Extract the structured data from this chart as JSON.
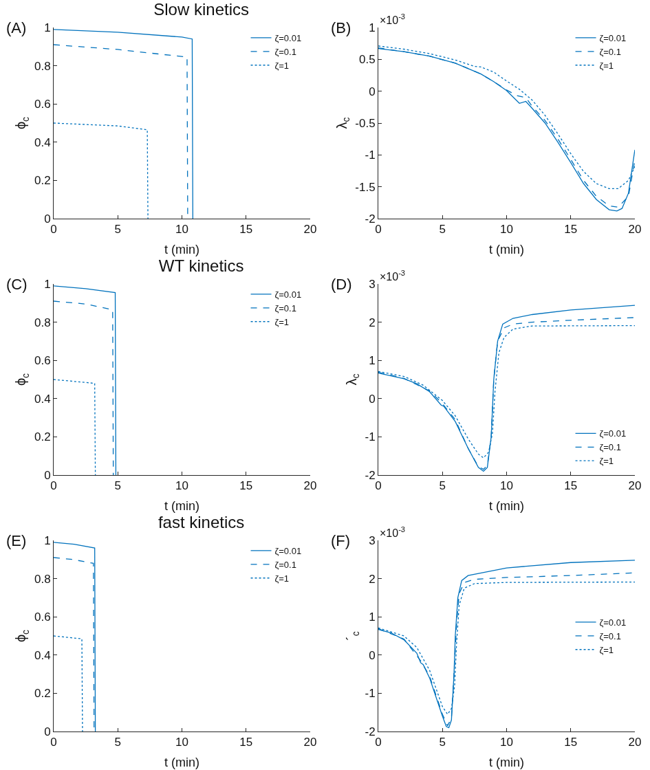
{
  "chart_data": [
    {
      "type": "line",
      "title": "Slow kinetics",
      "xlabel": "t (min)",
      "ylabel": "ϕ$_{c}$",
      "annotations": [
        "(A)"
      ],
      "xlim": [
        0,
        20
      ],
      "xticks": [
        0,
        5,
        10,
        15,
        20
      ],
      "ylim": [
        0,
        1
      ],
      "yticks": [
        0,
        0.2,
        0.4,
        0.6,
        0.8,
        1
      ],
      "grid": false,
      "legend": "top right",
      "series": [
        {
          "name": "ζ=0.01",
          "color": "#0072bd",
          "line_style": "solid",
          "x": [
            0,
            5,
            10,
            10.8,
            10.85
          ],
          "values": [
            0.99,
            0.975,
            0.95,
            0.94,
            0
          ]
        },
        {
          "name": "ζ=0.1",
          "color": "#0072bd",
          "line_style": "dashed",
          "x": [
            0,
            5,
            10.4,
            10.45
          ],
          "values": [
            0.91,
            0.885,
            0.845,
            0
          ]
        },
        {
          "name": "ζ=1",
          "color": "#0072bd",
          "line_style": "dotted",
          "x": [
            0,
            5,
            7.3,
            7.35
          ],
          "values": [
            0.5,
            0.485,
            0.465,
            0
          ]
        }
      ]
    },
    {
      "type": "line",
      "xlabel": "t (min)",
      "ylabel": "λ$_{c}$",
      "annotations": [
        "(B)",
        "×10$^{-3}$"
      ],
      "xlim": [
        0,
        20
      ],
      "xticks": [
        0,
        5,
        10,
        15,
        20
      ],
      "ylim": [
        -2,
        1
      ],
      "yticks": [
        -2,
        -1.5,
        -1,
        -0.5,
        0,
        0.5,
        1
      ],
      "grid": false,
      "legend": "top right",
      "series": [
        {
          "name": "ζ=0.01",
          "color": "#0072bd",
          "line_style": "solid",
          "x": [
            0,
            2,
            4,
            6,
            8,
            9,
            10,
            11,
            11.5,
            12,
            13,
            14,
            15,
            16,
            17,
            18,
            18.6,
            19,
            19.5,
            20
          ],
          "values": [
            0.67,
            0.62,
            0.55,
            0.44,
            0.27,
            0.15,
            0.01,
            -0.19,
            -0.16,
            -0.27,
            -0.5,
            -0.8,
            -1.12,
            -1.45,
            -1.7,
            -1.86,
            -1.88,
            -1.84,
            -1.6,
            -0.92
          ]
        },
        {
          "name": "ζ=0.1",
          "color": "#0072bd",
          "line_style": "dashed",
          "x": [
            0,
            2,
            4,
            6,
            8,
            9,
            10,
            10.8,
            11.5,
            12,
            13,
            14,
            15,
            16,
            17,
            18,
            18.7,
            19.5,
            20
          ],
          "values": [
            0.68,
            0.62,
            0.55,
            0.44,
            0.27,
            0.15,
            0.02,
            -0.07,
            -0.1,
            -0.24,
            -0.46,
            -0.75,
            -1.07,
            -1.4,
            -1.65,
            -1.8,
            -1.82,
            -1.65,
            -1.08
          ]
        },
        {
          "name": "ζ=1",
          "color": "#0072bd",
          "line_style": "dotted",
          "x": [
            0,
            2,
            4,
            6,
            7.5,
            8,
            9,
            10,
            11,
            12,
            13,
            14,
            15,
            16,
            17,
            18,
            18.7,
            19.5,
            20
          ],
          "values": [
            0.71,
            0.66,
            0.59,
            0.49,
            0.39,
            0.38,
            0.3,
            0.16,
            0.03,
            -0.14,
            -0.38,
            -0.67,
            -0.98,
            -1.26,
            -1.45,
            -1.53,
            -1.53,
            -1.4,
            -1.18
          ]
        }
      ]
    },
    {
      "type": "line",
      "title": "WT kinetics",
      "xlabel": "t (min)",
      "ylabel": "ϕ$_{c}$",
      "annotations": [
        "(C)"
      ],
      "xlim": [
        0,
        20
      ],
      "xticks": [
        0,
        5,
        10,
        15,
        20
      ],
      "ylim": [
        0,
        1
      ],
      "yticks": [
        0,
        0.2,
        0.4,
        0.6,
        0.8,
        1
      ],
      "grid": false,
      "legend": "top right",
      "series": [
        {
          "name": "ζ=0.01",
          "color": "#0072bd",
          "line_style": "solid",
          "x": [
            0,
            2.5,
            4.8,
            4.85
          ],
          "values": [
            0.99,
            0.975,
            0.955,
            0
          ]
        },
        {
          "name": "ζ=0.1",
          "color": "#0072bd",
          "line_style": "dashed",
          "x": [
            0,
            2.5,
            4.6,
            4.65
          ],
          "values": [
            0.91,
            0.895,
            0.865,
            0
          ]
        },
        {
          "name": "ζ=1",
          "color": "#0072bd",
          "line_style": "dotted",
          "x": [
            0,
            3.2,
            3.25
          ],
          "values": [
            0.5,
            0.48,
            0
          ]
        }
      ]
    },
    {
      "type": "line",
      "xlabel": "t (min)",
      "ylabel": "λ$_{c}$",
      "annotations": [
        "(D)",
        "×10$^{-3}$"
      ],
      "xlim": [
        0,
        20
      ],
      "xticks": [
        0,
        5,
        10,
        15,
        20
      ],
      "ylim": [
        -2,
        3
      ],
      "yticks": [
        -2,
        -1,
        0,
        1,
        2,
        3
      ],
      "grid": false,
      "legend": "bottom right",
      "series": [
        {
          "name": "ζ=0.01",
          "color": "#0072bd",
          "line_style": "solid",
          "x": [
            0,
            2,
            3,
            4,
            4.9,
            5.1,
            6,
            7,
            7.8,
            8.2,
            8.5,
            8.8,
            9,
            9.3,
            9.7,
            10.5,
            12,
            15,
            20
          ],
          "values": [
            0.67,
            0.52,
            0.39,
            0.18,
            -0.17,
            -0.2,
            -0.6,
            -1.3,
            -1.8,
            -1.9,
            -1.8,
            -1,
            0.5,
            1.5,
            1.95,
            2.1,
            2.2,
            2.32,
            2.44
          ]
        },
        {
          "name": "ζ=0.1",
          "color": "#0072bd",
          "line_style": "dashed",
          "x": [
            0,
            2,
            4,
            5,
            6,
            7,
            7.8,
            8.2,
            8.5,
            8.8,
            9,
            9.3,
            9.8,
            10.5,
            12,
            15,
            20
          ],
          "values": [
            0.69,
            0.53,
            0.2,
            -0.13,
            -0.55,
            -1.3,
            -1.78,
            -1.85,
            -1.75,
            -1,
            0.5,
            1.5,
            1.85,
            1.95,
            2,
            2.05,
            2.12
          ]
        },
        {
          "name": "ζ=1",
          "color": "#0072bd",
          "line_style": "dotted",
          "x": [
            0,
            2,
            3.5,
            5,
            6,
            7,
            7.8,
            8.2,
            8.6,
            8.9,
            9.1,
            9.4,
            9.8,
            10.5,
            12,
            20
          ],
          "values": [
            0.71,
            0.58,
            0.35,
            -0.05,
            -0.45,
            -1.05,
            -1.45,
            -1.55,
            -1.4,
            -0.9,
            0.2,
            1.2,
            1.6,
            1.82,
            1.9,
            1.91
          ]
        }
      ]
    },
    {
      "type": "line",
      "title": "fast kinetics",
      "xlabel": "t (min)",
      "ylabel": "ϕ$_{c}$",
      "annotations": [
        "(E)"
      ],
      "xlim": [
        0,
        20
      ],
      "xticks": [
        0,
        5,
        10,
        15,
        20
      ],
      "ylim": [
        0,
        1
      ],
      "yticks": [
        0,
        0.2,
        0.4,
        0.6,
        0.8,
        1
      ],
      "grid": false,
      "legend": "top right",
      "series": [
        {
          "name": "ζ=0.01",
          "color": "#0072bd",
          "line_style": "solid",
          "x": [
            0,
            1.6,
            3.2,
            3.25
          ],
          "values": [
            0.99,
            0.98,
            0.96,
            0
          ]
        },
        {
          "name": "ζ=0.1",
          "color": "#0072bd",
          "line_style": "dashed",
          "x": [
            0,
            1.5,
            3.1,
            3.15
          ],
          "values": [
            0.91,
            0.9,
            0.88,
            0
          ]
        },
        {
          "name": "ζ=1",
          "color": "#0072bd",
          "line_style": "dotted",
          "x": [
            0,
            2.2,
            2.25
          ],
          "values": [
            0.5,
            0.485,
            0
          ]
        }
      ]
    },
    {
      "type": "line",
      "xlabel": "t (min)",
      "ylabel": "´$_{c}$",
      "annotations": [
        "(F)",
        "×10$^{-3}$"
      ],
      "xlim": [
        0,
        20
      ],
      "xticks": [
        0,
        5,
        10,
        15,
        20
      ],
      "ylim": [
        -2,
        3
      ],
      "yticks": [
        -2,
        -1,
        0,
        1,
        2,
        3
      ],
      "grid": false,
      "legend": "right",
      "series": [
        {
          "name": "ζ=0.01",
          "color": "#0072bd",
          "line_style": "solid",
          "x": [
            0,
            1,
            2,
            3,
            3.3,
            3.5,
            4,
            4.5,
            5,
            5.3,
            5.5,
            5.7,
            5.9,
            6,
            6.2,
            6.5,
            7,
            10,
            15,
            20
          ],
          "values": [
            0.67,
            0.58,
            0.4,
            0.05,
            -0.2,
            -0.25,
            -0.6,
            -1.1,
            -1.6,
            -1.87,
            -1.9,
            -1.7,
            -0.5,
            0.5,
            1.5,
            1.95,
            2.08,
            2.28,
            2.42,
            2.48
          ]
        },
        {
          "name": "ζ=0.1",
          "color": "#0072bd",
          "line_style": "dashed",
          "x": [
            0,
            2,
            3.3,
            4,
            5,
            5.4,
            5.7,
            5.9,
            6.1,
            6.3,
            6.7,
            7.5,
            10,
            15,
            20
          ],
          "values": [
            0.69,
            0.42,
            -0.15,
            -0.55,
            -1.55,
            -1.85,
            -1.65,
            -0.5,
            0.8,
            1.6,
            1.9,
            1.98,
            2.03,
            2.08,
            2.15
          ]
        },
        {
          "name": "ζ=1",
          "color": "#0072bd",
          "line_style": "dotted",
          "x": [
            0,
            2,
            3,
            4,
            5,
            5.4,
            5.7,
            5.95,
            6.1,
            6.3,
            6.7,
            7.5,
            10,
            20
          ],
          "values": [
            0.71,
            0.5,
            0.2,
            -0.4,
            -1.35,
            -1.55,
            -1.4,
            -0.8,
            0.3,
            1.3,
            1.75,
            1.87,
            1.9,
            1.91
          ]
        }
      ]
    }
  ]
}
